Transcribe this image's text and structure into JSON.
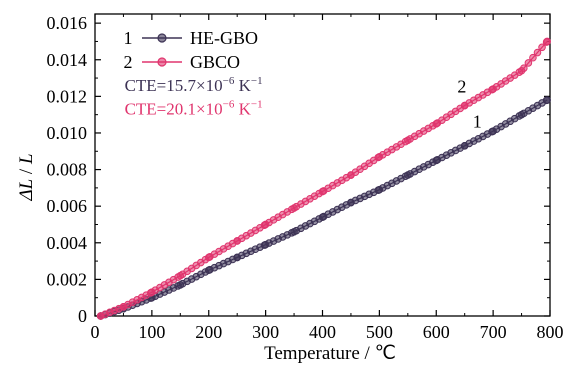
{
  "chart_data": {
    "type": "line",
    "xlabel": "Temperature / ℃",
    "ylabel_prefix": "ΔL",
    "ylabel_mid": " / ",
    "ylabel_suffix": "L",
    "xlim": [
      0,
      800
    ],
    "ylim": [
      0,
      0.0165
    ],
    "xticks": [
      0,
      100,
      200,
      300,
      400,
      500,
      600,
      700,
      800
    ],
    "yticks": [
      0,
      0.002,
      0.004,
      0.006,
      0.008,
      0.01,
      0.012,
      0.014,
      0.016
    ],
    "ytick_labels": [
      "0",
      "0.002",
      "0.004",
      "0.006",
      "0.008",
      "0.010",
      "0.012",
      "0.014",
      "0.016"
    ],
    "grid": false,
    "legend_position": "top-left",
    "series": [
      {
        "index": "1",
        "name": "HE-GBO",
        "color": "#3d3355",
        "x": [
          10,
          50,
          100,
          150,
          200,
          250,
          300,
          350,
          400,
          450,
          500,
          550,
          600,
          650,
          700,
          750,
          795
        ],
        "y": [
          0.0,
          0.0004,
          0.001,
          0.0017,
          0.0025,
          0.0032,
          0.0039,
          0.0046,
          0.0054,
          0.0062,
          0.0069,
          0.0077,
          0.0085,
          0.0093,
          0.0101,
          0.011,
          0.0118
        ],
        "curve_label": "1",
        "curve_label_at": [
          672,
          0.0103
        ]
      },
      {
        "index": "2",
        "name": "GBCO",
        "color": "#e0356e",
        "x": [
          10,
          50,
          100,
          150,
          200,
          250,
          300,
          350,
          400,
          450,
          500,
          550,
          600,
          650,
          700,
          750,
          795
        ],
        "y": [
          0.0,
          0.0005,
          0.0013,
          0.0022,
          0.0032,
          0.0041,
          0.005,
          0.0059,
          0.0068,
          0.0077,
          0.0087,
          0.0096,
          0.0105,
          0.0115,
          0.0124,
          0.0134,
          0.015
        ],
        "curve_label": "2",
        "curve_label_at": [
          645,
          0.0122
        ]
      }
    ],
    "annotations": [
      {
        "prefix": "CTE=15.7×10",
        "exp": "−6",
        "unit": " K",
        "unit_exp": "−1",
        "color": "#3d3355",
        "at": [
          52,
          0.0123
        ]
      },
      {
        "prefix": "CTE=20.1×10",
        "exp": "−6",
        "unit": " K",
        "unit_exp": "−1",
        "color": "#e0356e",
        "at": [
          52,
          0.011
        ]
      }
    ]
  }
}
